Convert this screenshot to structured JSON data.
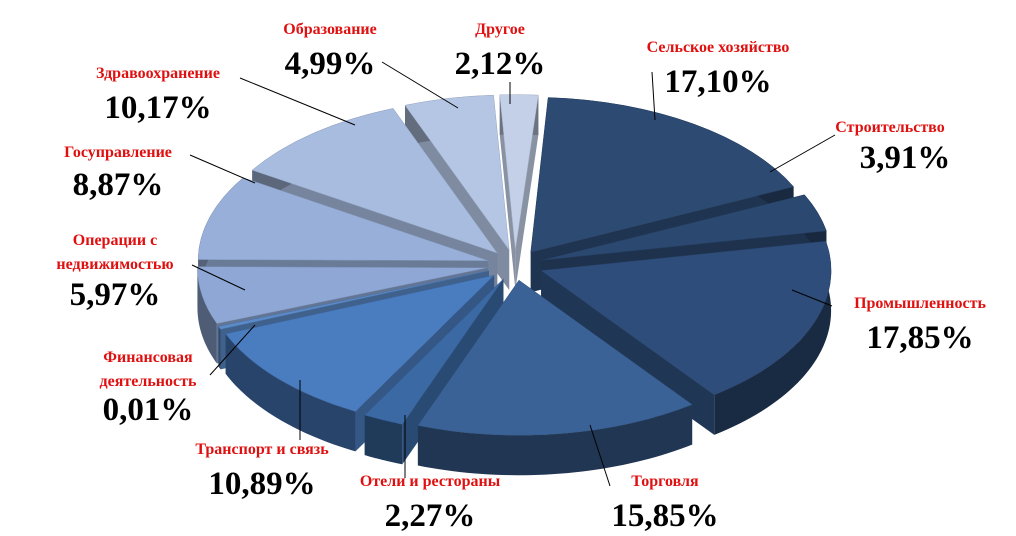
{
  "chart_data": {
    "type": "pie",
    "style": "3d-exploded",
    "slices": [
      {
        "label": "Сельское хозяйство",
        "value": 17.1,
        "display": "17,10%",
        "color": "#2d4a72"
      },
      {
        "label": "Строительство",
        "value": 3.91,
        "display": "3,91%",
        "color": "#2b4870"
      },
      {
        "label": "Промышленность",
        "value": 17.85,
        "display": "17,85%",
        "color": "#2e4d7a"
      },
      {
        "label": "Торговля",
        "value": 15.85,
        "display": "15,85%",
        "color": "#3a6296"
      },
      {
        "label": "Отели и рестораны",
        "value": 2.27,
        "display": "2,27%",
        "color": "#3b69a4"
      },
      {
        "label": "Транспорт и связь",
        "value": 10.89,
        "display": "10,89%",
        "color": "#4a7cc0"
      },
      {
        "label": "Финансовая деятельность",
        "value": 0.01,
        "display": "0,01%",
        "color": "#5a8ac8"
      },
      {
        "label": "Операции с недвижимостью",
        "value": 5.97,
        "display": "5,97%",
        "color": "#8ea7d4"
      },
      {
        "label": "Госуправление",
        "value": 8.87,
        "display": "8,87%",
        "color": "#98b0d9"
      },
      {
        "label": "Здравоохранение",
        "value": 10.17,
        "display": "10,17%",
        "color": "#a8bce0"
      },
      {
        "label": "Образование",
        "value": 4.99,
        "display": "4,99%",
        "color": "#b5c6e4"
      },
      {
        "label": "Другое",
        "value": 2.12,
        "display": "2,12%",
        "color": "#c3d0e8"
      }
    ]
  }
}
